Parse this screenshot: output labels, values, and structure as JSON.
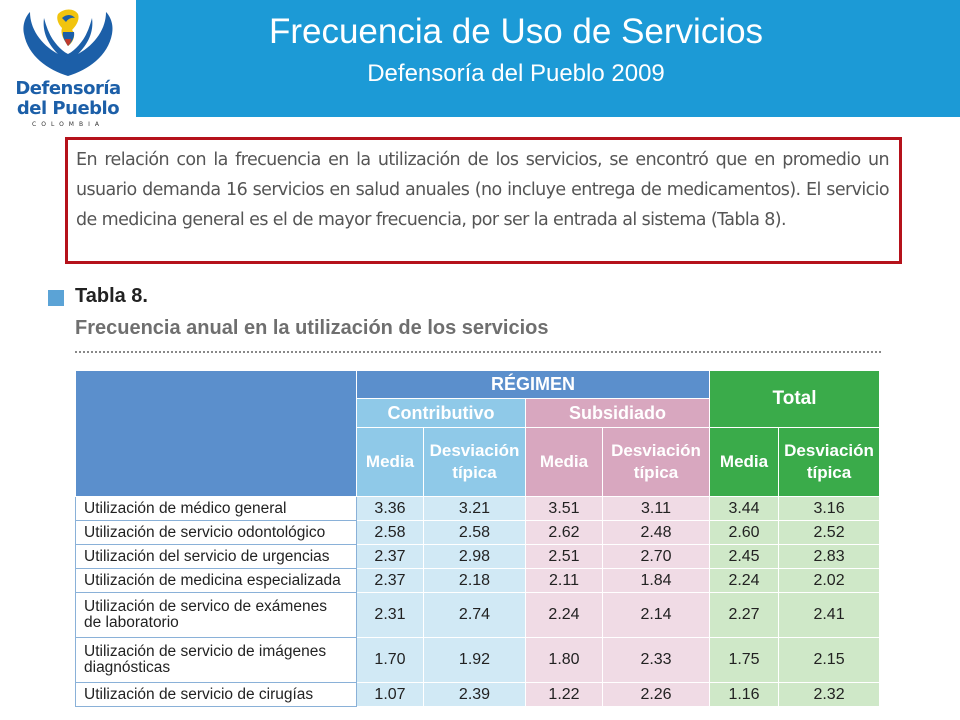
{
  "header": {
    "logo": {
      "line1": "Defensoría",
      "line2": "del Pueblo",
      "line3": "COLOMBIA",
      "colors": {
        "blue": "#1c5fa8",
        "yellow": "#f1c40f",
        "red": "#c0392b"
      }
    },
    "title": "Frecuencia de Uso de Servicios",
    "subtitle": "Defensoría del Pueblo 2009",
    "banner_color": "#1c9ad6"
  },
  "intro": {
    "text": "En relación con la frecuencia en la utilización de los servicios, se encontró que en promedio un usuario demanda 16 servicios en salud anuales (no incluye entrega de medicamentos). El servicio de medicina general es el de mayor frecuencia, por ser la entrada al sistema (Tabla 8).",
    "border_color": "#b5121b"
  },
  "table": {
    "label": "Tabla 8.",
    "caption": "Frecuencia anual en la utilización de los servicios",
    "header": {
      "regimen": "RÉGIMEN",
      "contributivo": "Contributivo",
      "subsidiado": "Subsidiado",
      "total": "Total",
      "media": "Media",
      "desviacion": "Desviación típica"
    },
    "rows": [
      {
        "label": "Utilización de médico general",
        "values": [
          "3.36",
          "3.21",
          "3.51",
          "3.11",
          "3.44",
          "3.16"
        ]
      },
      {
        "label": "Utilización de servicio odontológico",
        "values": [
          "2.58",
          "2.58",
          "2.62",
          "2.48",
          "2.60",
          "2.52"
        ]
      },
      {
        "label": "Utilización del servicio de urgencias",
        "values": [
          "2.37",
          "2.98",
          "2.51",
          "2.70",
          "2.45",
          "2.83"
        ]
      },
      {
        "label": "Utilización de medicina especializada",
        "values": [
          "2.37",
          "2.18",
          "2.11",
          "1.84",
          "2.24",
          "2.02"
        ]
      },
      {
        "label": "Utilización de servico de exámenes de laboratorio",
        "values": [
          "2.31",
          "2.74",
          "2.24",
          "2.14",
          "2.27",
          "2.41"
        ]
      },
      {
        "label": "Utilización de servicio de imágenes diagnósticas",
        "values": [
          "1.70",
          "1.92",
          "1.80",
          "2.33",
          "1.75",
          "2.15"
        ]
      },
      {
        "label": "Utilización de servicio de cirugías",
        "values": [
          "1.07",
          "2.39",
          "1.22",
          "2.26",
          "1.16",
          "2.32"
        ]
      }
    ]
  }
}
